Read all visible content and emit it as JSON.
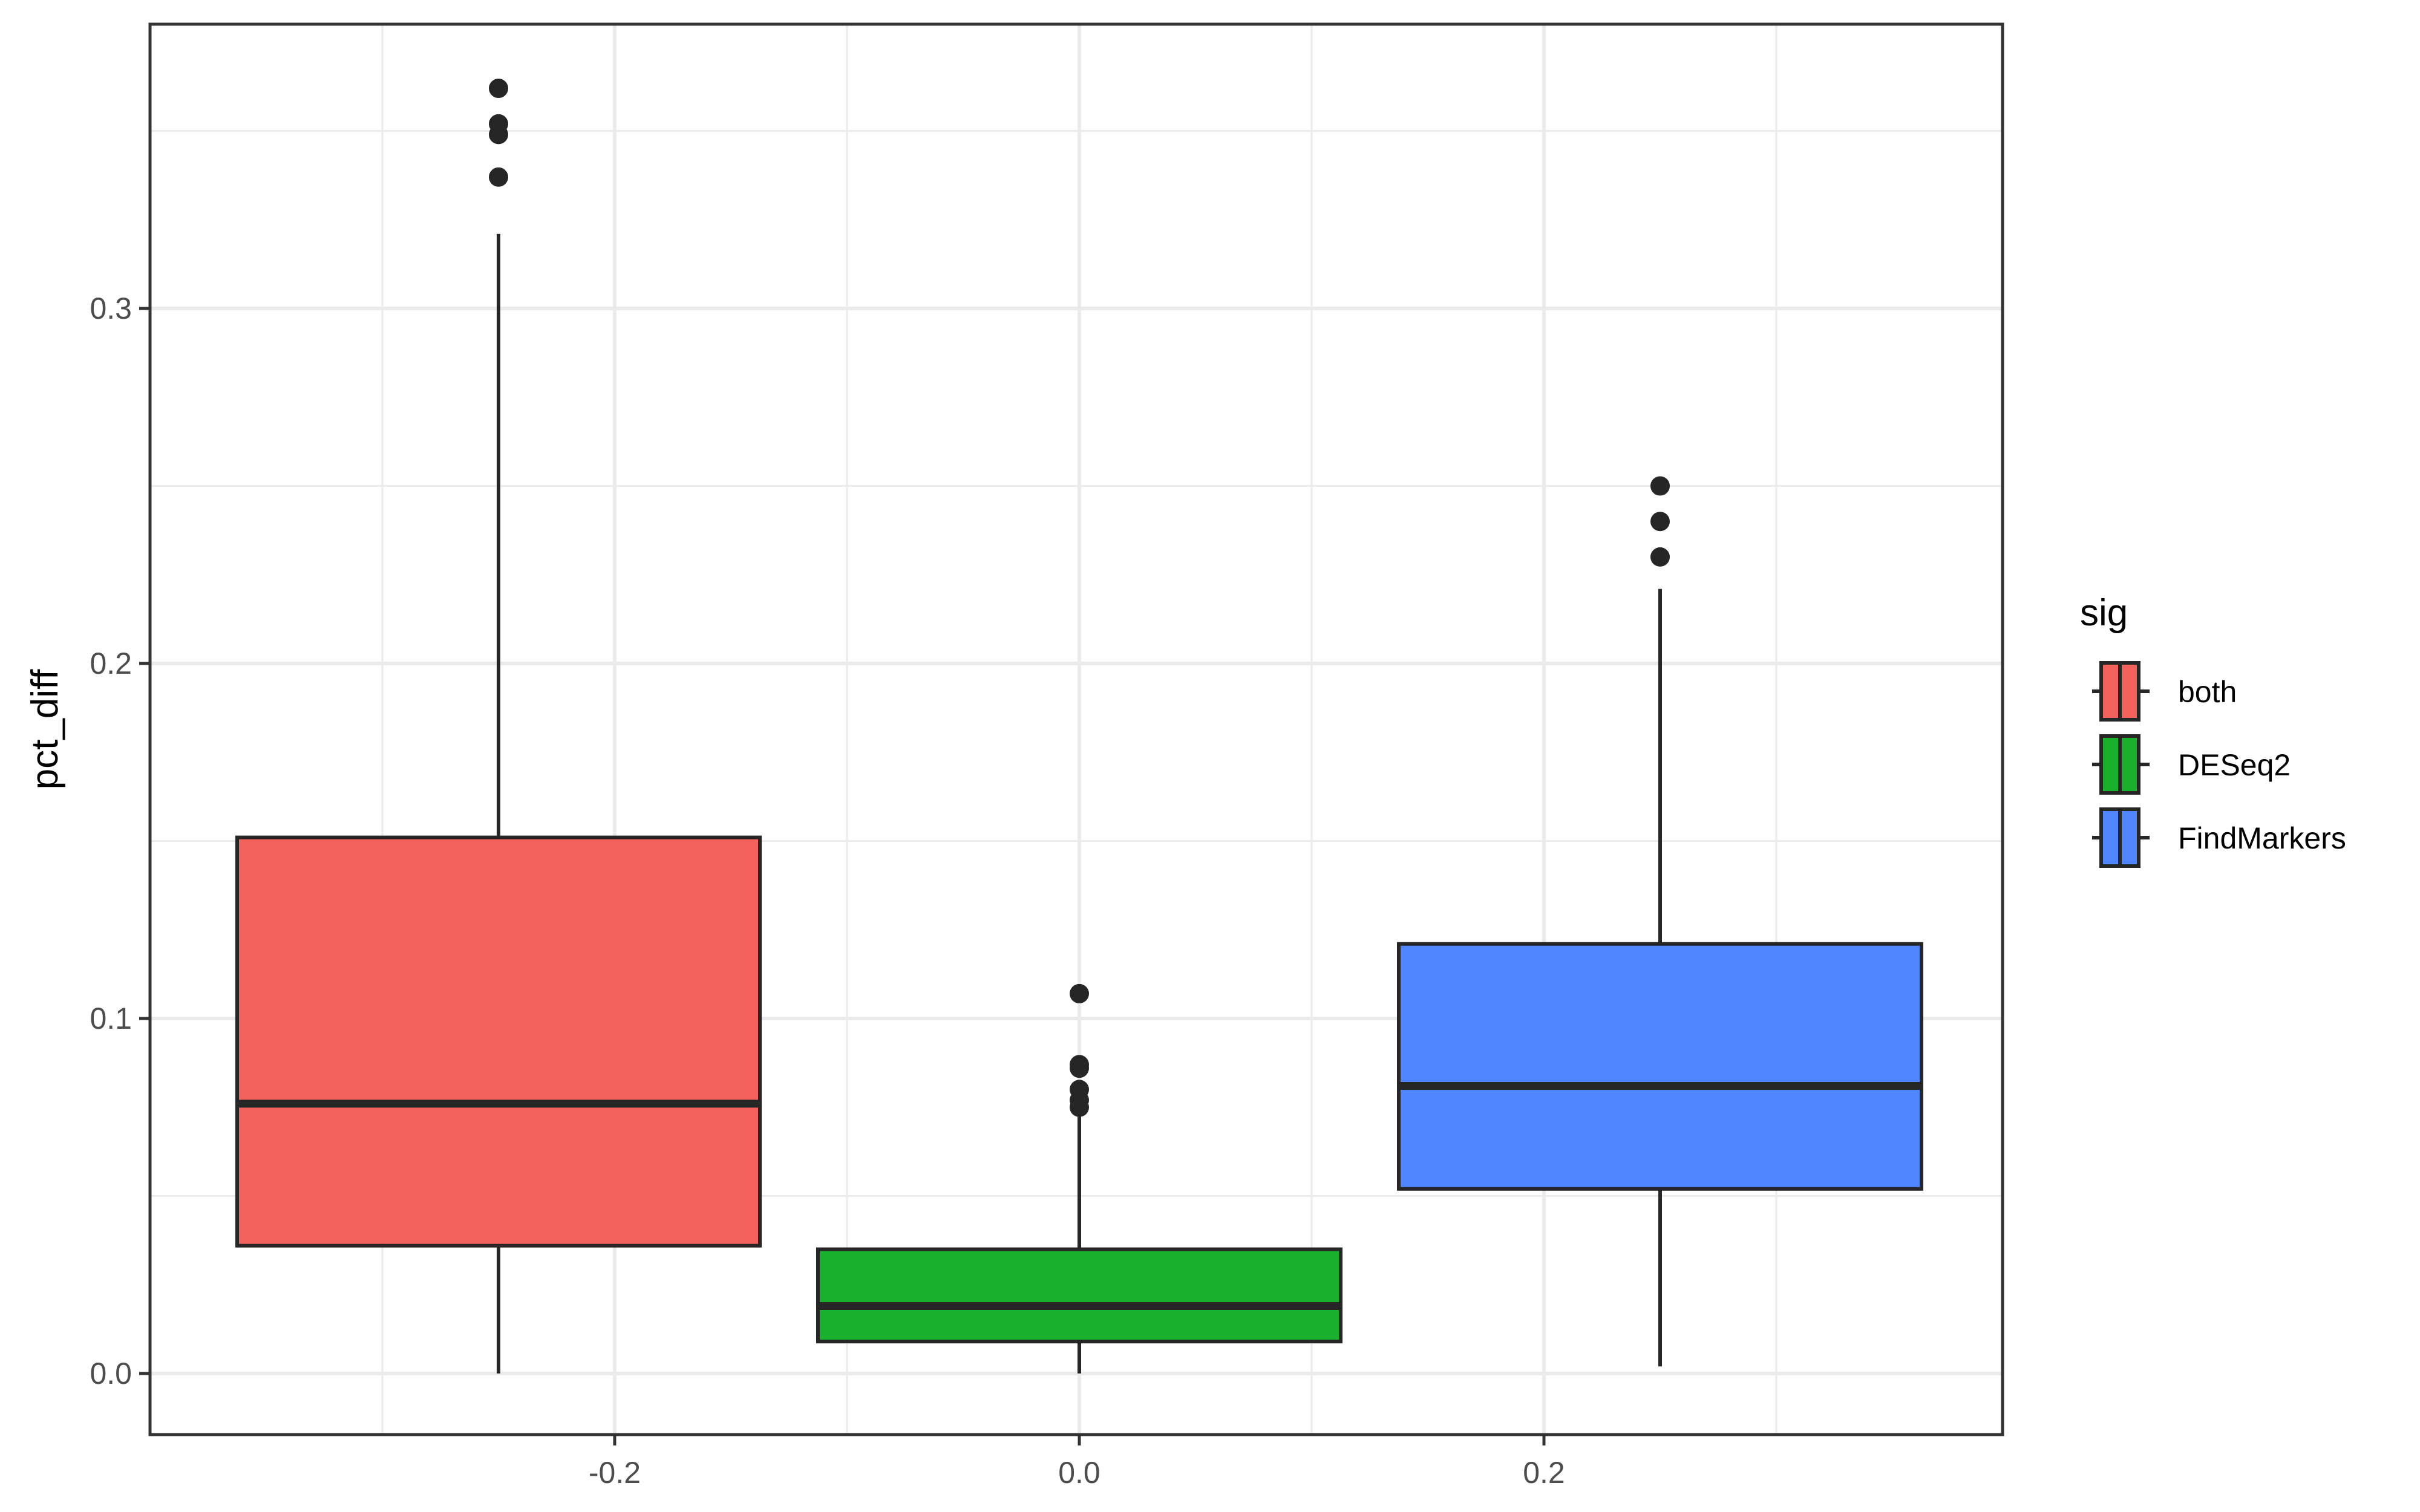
{
  "chart_data": {
    "type": "box",
    "title": "",
    "xlabel": "",
    "ylabel": "pct_diff",
    "xlim": [
      -0.4,
      0.4
    ],
    "ylim": [
      -0.017,
      0.38
    ],
    "x_ticks": [
      -0.2,
      0.0,
      0.2
    ],
    "x_tick_labels": [
      "-0.2",
      "0.0",
      "0.2"
    ],
    "y_ticks": [
      0.0,
      0.1,
      0.2,
      0.3
    ],
    "y_tick_labels": [
      "0.0",
      "0.1",
      "0.2",
      "0.3"
    ],
    "grid": true,
    "theme": "bw",
    "legend": {
      "title": "sig",
      "position": "right",
      "entries": [
        "both",
        "DESeq2",
        "FindMarkers"
      ]
    },
    "series": [
      {
        "name": "both",
        "color": "#F3615D",
        "x_center": -0.25,
        "box_width": 0.225,
        "whisker_low": 0.0,
        "q1": 0.036,
        "median": 0.076,
        "q3": 0.151,
        "whisker_high": 0.321,
        "outliers": [
          0.337,
          0.349,
          0.352,
          0.362
        ]
      },
      {
        "name": "DESeq2",
        "color": "#19B02E",
        "x_center": 0.0,
        "box_width": 0.225,
        "whisker_low": 0.0,
        "q1": 0.009,
        "median": 0.019,
        "q3": 0.035,
        "whisker_high": 0.074,
        "outliers": [
          0.075,
          0.077,
          0.08,
          0.086,
          0.087,
          0.107
        ]
      },
      {
        "name": "FindMarkers",
        "color": "#5086FF",
        "x_center": 0.25,
        "box_width": 0.225,
        "whisker_low": 0.002,
        "q1": 0.052,
        "median": 0.081,
        "q3": 0.121,
        "whisker_high": 0.221,
        "outliers": [
          0.23,
          0.24,
          0.25
        ]
      }
    ]
  },
  "axes": {
    "y_title": "pct_diff"
  },
  "legend": {
    "title": "sig",
    "items": [
      {
        "label": "both",
        "color": "#F3615D"
      },
      {
        "label": "DESeq2",
        "color": "#19B02E"
      },
      {
        "label": "FindMarkers",
        "color": "#5086FF"
      }
    ]
  },
  "colors": {
    "outline": "#262626",
    "grid": "#EBEBEB",
    "panel_border": "#333333",
    "tick_text": "#4D4D4D"
  }
}
